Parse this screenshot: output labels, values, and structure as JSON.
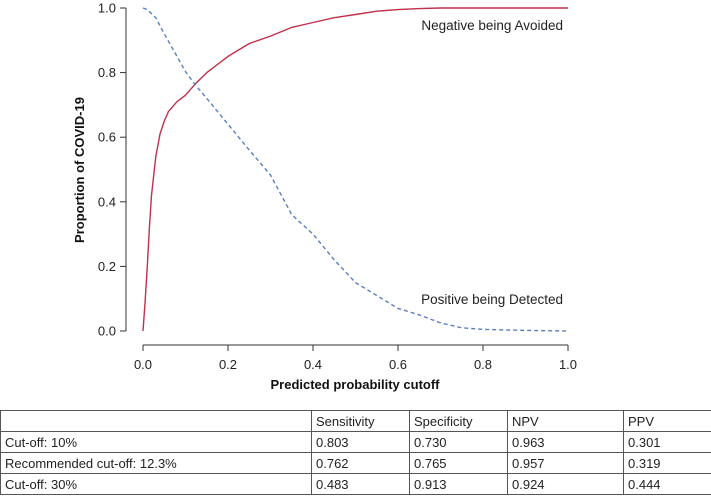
{
  "chart_data": {
    "type": "line",
    "xlabel": "Predicted probability cutoff",
    "ylabel": "Proportion of COVID-19",
    "xlim": [
      0,
      1
    ],
    "ylim": [
      0,
      1
    ],
    "xticks": [
      "0.0",
      "0.2",
      "0.4",
      "0.6",
      "0.8",
      "1.0"
    ],
    "yticks": [
      "0.0",
      "0.2",
      "0.4",
      "0.6",
      "0.8",
      "1.0"
    ],
    "grid": false,
    "series": [
      {
        "name": "Negative being Avoided",
        "color": "#c0304a",
        "style": "solid",
        "x": [
          0,
          0.005,
          0.01,
          0.015,
          0.02,
          0.03,
          0.04,
          0.05,
          0.06,
          0.08,
          0.1,
          0.123,
          0.15,
          0.2,
          0.25,
          0.3,
          0.35,
          0.4,
          0.45,
          0.5,
          0.55,
          0.6,
          0.65,
          0.7,
          0.8,
          0.9,
          1.0
        ],
        "y": [
          0,
          0.09,
          0.2,
          0.32,
          0.42,
          0.54,
          0.61,
          0.65,
          0.68,
          0.71,
          0.73,
          0.765,
          0.8,
          0.85,
          0.89,
          0.913,
          0.94,
          0.955,
          0.97,
          0.98,
          0.99,
          0.995,
          0.998,
          1.0,
          1.0,
          1.0,
          1.0
        ]
      },
      {
        "name": "Positive being Detected",
        "color": "#5a7fbf",
        "style": "dashed",
        "x": [
          0,
          0.01,
          0.03,
          0.05,
          0.08,
          0.1,
          0.123,
          0.15,
          0.2,
          0.25,
          0.3,
          0.35,
          0.4,
          0.45,
          0.5,
          0.55,
          0.6,
          0.65,
          0.7,
          0.75,
          0.8,
          0.9,
          1.0
        ],
        "y": [
          1.0,
          0.995,
          0.97,
          0.92,
          0.85,
          0.803,
          0.762,
          0.72,
          0.64,
          0.56,
          0.483,
          0.36,
          0.3,
          0.22,
          0.15,
          0.11,
          0.07,
          0.05,
          0.025,
          0.01,
          0.005,
          0.002,
          0.0
        ]
      }
    ],
    "annotations": [
      "Negative being Avoided",
      "Positive being Detected"
    ]
  },
  "table": {
    "headers": [
      "",
      "Sensitivity",
      "Specificity",
      "NPV",
      "PPV"
    ],
    "rows": [
      [
        "Cut-off: 10%",
        "0.803",
        "0.730",
        "0.963",
        "0.301"
      ],
      [
        "Recommended cut-off: 12.3%",
        "0.762",
        "0.765",
        "0.957",
        "0.319"
      ],
      [
        "Cut-off: 30%",
        "0.483",
        "0.913",
        "0.924",
        "0.444"
      ]
    ]
  }
}
